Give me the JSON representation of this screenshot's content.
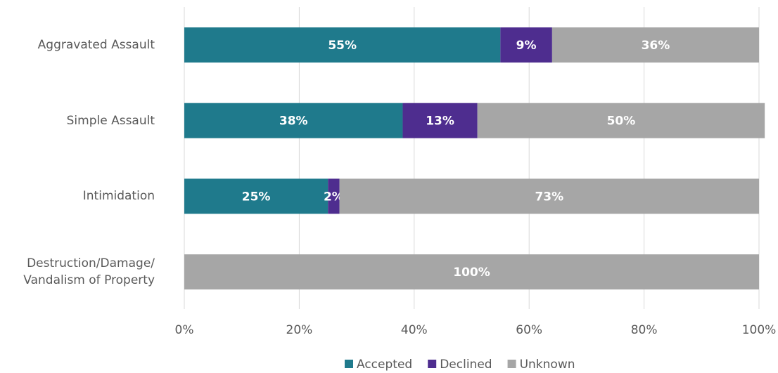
{
  "chart_data": {
    "type": "stacked_barh",
    "categories": [
      "Aggravated Assault",
      "Simple Assault",
      "Intimidation",
      "Destruction/Damage/ Vandalism of Property"
    ],
    "series": [
      {
        "name": "Accepted",
        "color": "#1f7a8c",
        "values": [
          55,
          38,
          25,
          0
        ],
        "value_labels": [
          "55%",
          "38%",
          "25%",
          null
        ]
      },
      {
        "name": "Declined",
        "color": "#4e2d8f",
        "values": [
          9,
          13,
          2,
          0
        ],
        "value_labels": [
          "9%",
          "13%",
          "2%",
          null
        ]
      },
      {
        "name": "Unknown",
        "color": "#a6a6a6",
        "values": [
          36,
          50,
          73,
          100
        ],
        "value_labels": [
          "36%",
          "50%",
          "73%",
          "100%"
        ]
      }
    ],
    "xlim": [
      0,
      100
    ],
    "xticks": [
      {
        "value": 0,
        "label": "0%"
      },
      {
        "value": 20,
        "label": "20%"
      },
      {
        "value": 40,
        "label": "40%"
      },
      {
        "value": 60,
        "label": "60%"
      },
      {
        "value": 80,
        "label": "80%"
      },
      {
        "value": 100,
        "label": "100%"
      }
    ],
    "grid": true,
    "legend": "bottom"
  }
}
